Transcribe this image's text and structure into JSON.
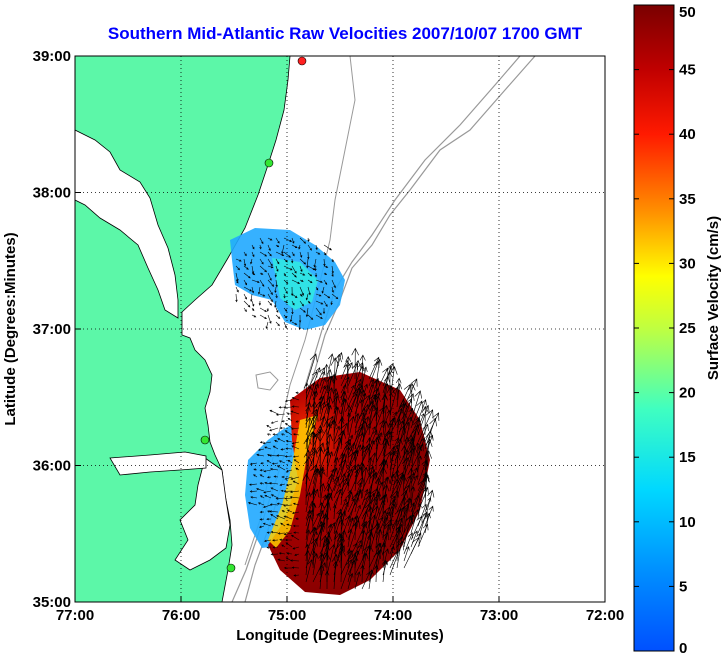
{
  "chart_data": {
    "type": "heatmap",
    "title": "Southern Mid-Atlantic Raw Velocities 2007/10/07 1700 GMT",
    "xlabel": "Longitude (Degrees:Minutes)",
    "ylabel": "Latitude (Degrees:Minutes)",
    "x_ticks": [
      "77:00",
      "76:00",
      "75:00",
      "74:00",
      "73:00",
      "72:00"
    ],
    "y_ticks": [
      "39:00",
      "38:00",
      "37:00",
      "36:00",
      "35:00"
    ],
    "xlim": [
      -77,
      -72
    ],
    "ylim": [
      35,
      39
    ],
    "grid": true,
    "colorbar": {
      "label": "Surface Velocity (cm/s)",
      "ticks": [
        "50",
        "45",
        "40",
        "35",
        "30",
        "25",
        "20",
        "15",
        "10",
        "5",
        "0"
      ],
      "range": [
        0,
        50
      ]
    },
    "colors": {
      "land": "#5cf7a8",
      "water": "#ffffff",
      "bathymetry": "#999999",
      "arrows": "#000000",
      "stations": "#33e633"
    }
  }
}
